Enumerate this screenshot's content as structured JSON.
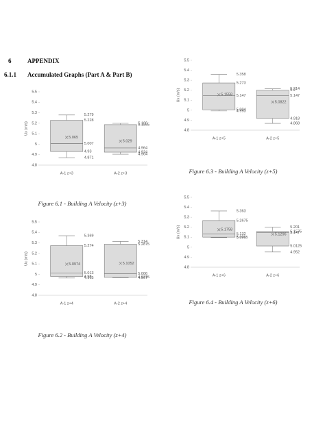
{
  "section": {
    "number": "6",
    "title": "APPENDIX"
  },
  "subsection": {
    "number": "6.1.1",
    "title": "Accumulated Graphs (Part A & Part B)"
  },
  "chart_data": [
    {
      "type": "box",
      "title": "Figure 6.1 - Building A Velocity (z+3)",
      "y_label": "Ux (m/s)",
      "ylim": [
        4.8,
        5.5
      ],
      "yticks": [
        4.8,
        4.9,
        5,
        5.1,
        5.2,
        5.3,
        5.4,
        5.5
      ],
      "categories": [
        "A-1 z+3",
        "A-2 z+3"
      ],
      "boxes": [
        {
          "min": 4.871,
          "q1": 4.93,
          "median": 5.007,
          "mean": 5.065,
          "q3": 5.228,
          "max": 5.279
        },
        {
          "min": 4.904,
          "q1": 4.924,
          "median": 4.964,
          "mean": 5.029,
          "q3": 5.1865,
          "max": 5.199
        }
      ]
    },
    {
      "type": "box",
      "title": "Figure 6.2 - Building A Velocity (z+4)",
      "y_label": "Ux (m/s)",
      "ylim": [
        4.8,
        5.5
      ],
      "yticks": [
        4.8,
        4.9,
        5,
        5.1,
        5.2,
        5.3,
        5.4,
        5.5
      ],
      "categories": [
        "A-1 z+4",
        "A-2 z+4"
      ],
      "boxes": [
        {
          "min": 4.965,
          "q1": 4.98,
          "median": 5.013,
          "mean": 5.0974,
          "q3": 5.274,
          "max": 5.369
        },
        {
          "min": 4.967,
          "q1": 4.9715,
          "median": 5.006,
          "mean": 5.1052,
          "q3": 5.2875,
          "max": 5.314
        }
      ]
    },
    {
      "type": "box",
      "title": "Figure 6.3 - Building A Velocity (z+5)",
      "y_label": "Ux (m/s)",
      "ylim": [
        4.8,
        5.5
      ],
      "yticks": [
        4.8,
        4.9,
        5,
        5.1,
        5.2,
        5.3,
        5.4,
        5.5
      ],
      "categories": [
        "A-1 z+5",
        "A-2 z+5"
      ],
      "boxes": [
        {
          "min": 4.993,
          "q1": 5.004,
          "median": 5.147,
          "mean": 5.1558,
          "q3": 5.273,
          "max": 5.358
        },
        {
          "min": 4.868,
          "q1": 4.918,
          "median": 5.147,
          "mean": 5.0822,
          "q3": 5.2,
          "max": 5.214
        }
      ]
    },
    {
      "type": "box",
      "title": "Figure 6.4 - Building A Velocity (z+6)",
      "y_label": "Ux (m/s)",
      "ylim": [
        4.8,
        5.5
      ],
      "yticks": [
        4.8,
        4.9,
        5,
        5.1,
        5.2,
        5.3,
        5.4,
        5.5
      ],
      "categories": [
        "A-1 z+6",
        "A-2 z+6"
      ],
      "boxes": [
        {
          "min": 5.0965,
          "q1": 5.101,
          "median": 5.132,
          "mean": 5.1758,
          "q3": 5.2675,
          "max": 5.363
        },
        {
          "min": 4.952,
          "q1": 5.0125,
          "median": 5.147,
          "mean": 5.1296,
          "q3": 5.1575,
          "max": 5.201
        }
      ]
    }
  ]
}
